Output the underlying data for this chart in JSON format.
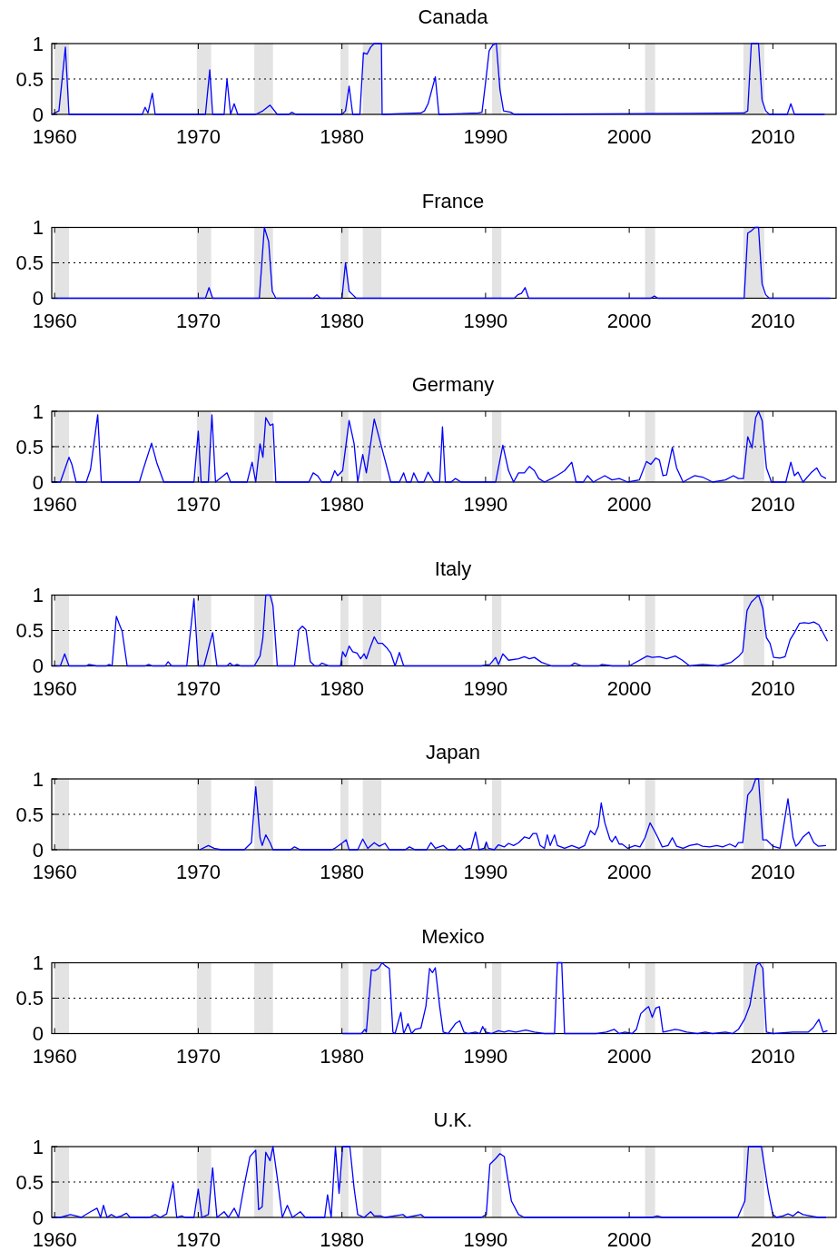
{
  "chart_data": [
    {
      "type": "line",
      "title": "Canada",
      "xlim": [
        1959.8,
        2014.4
      ],
      "xticks": [
        1960,
        1970,
        1980,
        1990,
        2000,
        2010
      ],
      "ylim": [
        0,
        1
      ],
      "yticks": [
        0,
        0.5,
        1
      ],
      "bands": [
        {
          "axis": "x",
          "from": 1960.0,
          "to": 1961.0,
          "color": "#e3e3e3"
        },
        {
          "axis": "x",
          "from": 1969.9,
          "to": 1970.9,
          "color": "#e3e3e3"
        },
        {
          "axis": "x",
          "from": 1973.9,
          "to": 1975.2,
          "color": "#e3e3e3"
        },
        {
          "axis": "x",
          "from": 1979.9,
          "to": 1980.45,
          "color": "#e3e3e3"
        },
        {
          "axis": "x",
          "from": 1981.45,
          "to": 1982.75,
          "color": "#e3e3e3"
        },
        {
          "axis": "x",
          "from": 1990.45,
          "to": 1991.1,
          "color": "#e3e3e3"
        },
        {
          "axis": "x",
          "from": 2001.1,
          "to": 2001.8,
          "color": "#e3e3e3"
        },
        {
          "axis": "x",
          "from": 2007.95,
          "to": 2009.4,
          "color": "#e3e3e3"
        }
      ],
      "ref_lines": [
        {
          "axis": "y",
          "value": 0.5,
          "color": "#000000",
          "line_style": "dotted"
        }
      ],
      "series": [
        {
          "color": "#0000ff",
          "x": [
            1959.8,
            1960.3,
            1960.75,
            1961.0,
            1966.1,
            1966.3,
            1966.5,
            1966.8,
            1967.0,
            1970.5,
            1970.8,
            1971.0,
            1971.8,
            1972.0,
            1972.25,
            1972.5,
            1972.75,
            1974.0,
            1974.5,
            1975.0,
            1975.5,
            1976.3,
            1976.5,
            1976.8,
            1980.0,
            1980.25,
            1980.5,
            1980.75,
            1981.25,
            1981.5,
            1981.75,
            1982.0,
            1982.25,
            1982.5,
            1982.75,
            1982.8,
            1985.5,
            1985.75,
            1986.0,
            1986.5,
            1986.75,
            1989.5,
            1989.75,
            1990.0,
            1990.25,
            1990.5,
            1990.75,
            1991.0,
            1991.25,
            1991.75,
            1992.0,
            2008.0,
            2008.25,
            2008.5,
            2008.75,
            2009.0,
            2009.25,
            2009.5,
            2009.75,
            2011.0,
            2011.25,
            2011.5,
            2013.6
          ],
          "values": [
            0,
            0.05,
            0.95,
            0,
            0,
            0.1,
            0.02,
            0.3,
            0,
            0,
            0.63,
            0,
            0,
            0.5,
            0,
            0.15,
            0,
            0,
            0.05,
            0.13,
            0,
            0,
            0.03,
            0,
            0,
            0.05,
            0.4,
            0,
            0,
            0.87,
            0.85,
            0.95,
            1,
            1,
            1,
            0,
            0.02,
            0.05,
            0.15,
            0.53,
            0,
            0.02,
            0.03,
            0.45,
            0.9,
            0.98,
            1,
            0.35,
            0.05,
            0.03,
            0,
            0.02,
            0.05,
            1,
            1,
            1,
            0.2,
            0.05,
            0,
            0,
            0.15,
            0,
            0
          ]
        }
      ]
    },
    {
      "type": "line",
      "title": "France",
      "xlim": [
        1959.8,
        2014.4
      ],
      "xticks": [
        1960,
        1970,
        1980,
        1990,
        2000,
        2010
      ],
      "ylim": [
        0,
        1
      ],
      "yticks": [
        0,
        0.5,
        1
      ],
      "bands": [
        {
          "axis": "x",
          "from": 1960.0,
          "to": 1961.0,
          "color": "#e3e3e3"
        },
        {
          "axis": "x",
          "from": 1969.9,
          "to": 1970.9,
          "color": "#e3e3e3"
        },
        {
          "axis": "x",
          "from": 1973.9,
          "to": 1975.2,
          "color": "#e3e3e3"
        },
        {
          "axis": "x",
          "from": 1979.9,
          "to": 1980.45,
          "color": "#e3e3e3"
        },
        {
          "axis": "x",
          "from": 1981.45,
          "to": 1982.75,
          "color": "#e3e3e3"
        },
        {
          "axis": "x",
          "from": 1990.45,
          "to": 1991.1,
          "color": "#e3e3e3"
        },
        {
          "axis": "x",
          "from": 2001.1,
          "to": 2001.8,
          "color": "#e3e3e3"
        },
        {
          "axis": "x",
          "from": 2007.95,
          "to": 2009.4,
          "color": "#e3e3e3"
        }
      ],
      "ref_lines": [
        {
          "axis": "y",
          "value": 0.5,
          "color": "#000000",
          "line_style": "dotted"
        }
      ],
      "series": [
        {
          "color": "#0000ff",
          "x": [
            1959.8,
            1970.5,
            1970.75,
            1971.0,
            1974.25,
            1974.6,
            1974.9,
            1975.15,
            1975.4,
            1978.0,
            1978.25,
            1978.5,
            1980.0,
            1980.25,
            1980.5,
            1980.75,
            1981.0,
            1992.0,
            1992.25,
            1992.5,
            1992.75,
            1993.0,
            2001.5,
            2001.75,
            2002.0,
            2008.0,
            2008.25,
            2008.5,
            2008.75,
            2009.0,
            2009.25,
            2009.5,
            2009.75,
            2014.0
          ],
          "values": [
            0,
            0,
            0.15,
            0,
            0,
            1,
            0.8,
            0.1,
            0,
            0,
            0.05,
            0,
            0,
            0.5,
            0.1,
            0.05,
            0,
            0,
            0.05,
            0.07,
            0.15,
            0,
            0,
            0.03,
            0,
            0,
            0.92,
            0.95,
            1,
            1,
            0.2,
            0.05,
            0,
            0
          ]
        }
      ]
    },
    {
      "type": "line",
      "title": "Germany",
      "xlim": [
        1959.8,
        2014.4
      ],
      "xticks": [
        1960,
        1970,
        1980,
        1990,
        2000,
        2010
      ],
      "ylim": [
        0,
        1
      ],
      "yticks": [
        0,
        0.5,
        1
      ],
      "bands": [
        {
          "axis": "x",
          "from": 1960.0,
          "to": 1961.0,
          "color": "#e3e3e3"
        },
        {
          "axis": "x",
          "from": 1969.9,
          "to": 1970.9,
          "color": "#e3e3e3"
        },
        {
          "axis": "x",
          "from": 1973.9,
          "to": 1975.2,
          "color": "#e3e3e3"
        },
        {
          "axis": "x",
          "from": 1979.9,
          "to": 1980.45,
          "color": "#e3e3e3"
        },
        {
          "axis": "x",
          "from": 1981.45,
          "to": 1982.75,
          "color": "#e3e3e3"
        },
        {
          "axis": "x",
          "from": 1990.45,
          "to": 1991.1,
          "color": "#e3e3e3"
        },
        {
          "axis": "x",
          "from": 2001.1,
          "to": 2001.8,
          "color": "#e3e3e3"
        },
        {
          "axis": "x",
          "from": 2007.95,
          "to": 2009.4,
          "color": "#e3e3e3"
        }
      ],
      "ref_lines": [
        {
          "axis": "y",
          "value": 0.5,
          "color": "#000000",
          "line_style": "dotted"
        }
      ],
      "series": [
        {
          "color": "#0000ff",
          "x": [
            1959.8,
            1960.4,
            1961.0,
            1961.2,
            1961.5,
            1962.2,
            1962.5,
            1963.0,
            1963.25,
            1965.9,
            1966.2,
            1966.75,
            1967.1,
            1967.6,
            1969.7,
            1970.0,
            1970.2,
            1970.7,
            1970.95,
            1971.2,
            1972.0,
            1972.25,
            1973.4,
            1973.75,
            1974.0,
            1974.3,
            1974.5,
            1974.7,
            1975.0,
            1975.2,
            1975.4,
            1977.7,
            1978.0,
            1978.3,
            1978.6,
            1979.2,
            1979.5,
            1979.7,
            1980.05,
            1980.5,
            1980.85,
            1981.1,
            1981.45,
            1981.7,
            1982.25,
            1982.7,
            1983.0,
            1983.4,
            1984.0,
            1984.3,
            1984.5,
            1984.8,
            1985.0,
            1985.3,
            1985.7,
            1986.0,
            1986.4,
            1986.8,
            1987.0,
            1987.2,
            1987.6,
            1987.9,
            1988.3,
            1990.7,
            1991.2,
            1991.6,
            1991.95,
            1992.3,
            1992.7,
            1993.05,
            1993.4,
            1993.7,
            1994.1,
            1994.6,
            1994.95,
            1995.5,
            1996.0,
            1996.3,
            1996.8,
            1997.1,
            1997.5,
            1998.3,
            1998.8,
            1999.3,
            1999.9,
            2000.7,
            2001.2,
            2001.5,
            2001.85,
            2002.1,
            2002.35,
            2002.6,
            2003.0,
            2003.3,
            2003.75,
            2004.55,
            2005.1,
            2005.8,
            2006.7,
            2007.25,
            2007.6,
            2007.95,
            2008.25,
            2008.55,
            2008.8,
            2009.0,
            2009.25,
            2009.55,
            2009.9,
            2010.9,
            2011.25,
            2011.5,
            2011.75,
            2012.1,
            2012.65,
            2013.05,
            2013.35,
            2013.7
          ],
          "values": [
            0,
            0,
            0.35,
            0.25,
            0,
            0,
            0.18,
            0.95,
            0,
            0,
            0.2,
            0.55,
            0.28,
            0,
            0,
            0.72,
            0,
            0,
            0.95,
            0,
            0.13,
            0,
            0,
            0.28,
            0,
            0.54,
            0.35,
            0.91,
            0.8,
            0.82,
            0,
            0,
            0.13,
            0.09,
            0,
            0,
            0.16,
            0.09,
            0.16,
            0.87,
            0.54,
            0,
            0.39,
            0.13,
            0.89,
            0.54,
            0.31,
            0,
            0,
            0.13,
            0,
            0,
            0.13,
            0,
            0,
            0.14,
            0,
            0,
            0.78,
            0,
            0,
            0.05,
            0,
            0,
            0.52,
            0.16,
            0,
            0.13,
            0.13,
            0.22,
            0.16,
            0.05,
            0,
            0.05,
            0.09,
            0.16,
            0.28,
            0,
            0,
            0.09,
            0,
            0.09,
            0.03,
            0.05,
            0,
            0.03,
            0.29,
            0.25,
            0.34,
            0.31,
            0.09,
            0.1,
            0.49,
            0.2,
            0,
            0.09,
            0.07,
            0,
            0.03,
            0.09,
            0.05,
            0.05,
            0.64,
            0.48,
            0.91,
            1,
            0.87,
            0.2,
            0,
            0,
            0.28,
            0.09,
            0.14,
            0,
            0.13,
            0.2,
            0.09,
            0.05
          ]
        }
      ]
    },
    {
      "type": "line",
      "title": "Italy",
      "xlim": [
        1959.8,
        2014.4
      ],
      "xticks": [
        1960,
        1970,
        1980,
        1990,
        2000,
        2010
      ],
      "ylim": [
        0,
        1
      ],
      "yticks": [
        0,
        0.5,
        1
      ],
      "bands": [
        {
          "axis": "x",
          "from": 1960.0,
          "to": 1961.0,
          "color": "#e3e3e3"
        },
        {
          "axis": "x",
          "from": 1969.9,
          "to": 1970.9,
          "color": "#e3e3e3"
        },
        {
          "axis": "x",
          "from": 1973.9,
          "to": 1975.2,
          "color": "#e3e3e3"
        },
        {
          "axis": "x",
          "from": 1979.9,
          "to": 1980.45,
          "color": "#e3e3e3"
        },
        {
          "axis": "x",
          "from": 1981.45,
          "to": 1982.75,
          "color": "#e3e3e3"
        },
        {
          "axis": "x",
          "from": 1990.45,
          "to": 1991.1,
          "color": "#e3e3e3"
        },
        {
          "axis": "x",
          "from": 2001.1,
          "to": 2001.8,
          "color": "#e3e3e3"
        },
        {
          "axis": "x",
          "from": 2007.95,
          "to": 2009.4,
          "color": "#e3e3e3"
        }
      ],
      "ref_lines": [
        {
          "axis": "y",
          "value": 0.5,
          "color": "#000000",
          "line_style": "dotted"
        }
      ],
      "series": [
        {
          "color": "#0000ff",
          "x": [
            1959.8,
            1960.4,
            1960.7,
            1961.0,
            1962.2,
            1962.4,
            1962.9,
            1963.6,
            1963.8,
            1964.0,
            1964.3,
            1964.5,
            1964.7,
            1965.05,
            1966.3,
            1966.55,
            1966.8,
            1967.7,
            1967.9,
            1968.15,
            1969.2,
            1969.7,
            1970.0,
            1970.4,
            1971.0,
            1971.3,
            1972.0,
            1972.2,
            1972.45,
            1972.7,
            1972.95,
            1973.9,
            1974.3,
            1974.5,
            1974.7,
            1975.0,
            1975.2,
            1975.5,
            1976.7,
            1977.0,
            1977.25,
            1977.5,
            1977.8,
            1978.1,
            1978.4,
            1978.6,
            1979.1,
            1979.9,
            1980.05,
            1980.25,
            1980.5,
            1980.75,
            1981.05,
            1981.3,
            1981.55,
            1981.7,
            1982.0,
            1982.25,
            1982.5,
            1982.8,
            1983.1,
            1983.4,
            1983.7,
            1984.0,
            1984.3,
            1989.7,
            1990.3,
            1990.7,
            1990.9,
            1991.2,
            1991.6,
            1992.3,
            1992.7,
            1993.05,
            1993.4,
            1993.9,
            1994.6,
            1995.9,
            1996.2,
            1996.7,
            1997.9,
            1998.1,
            1998.8,
            2000.0,
            2001.25,
            2001.6,
            2002.1,
            2002.6,
            2003.2,
            2003.7,
            2004.2,
            2005.1,
            2006.2,
            2007.1,
            2007.6,
            2007.9,
            2008.2,
            2008.5,
            2008.8,
            2009.0,
            2009.3,
            2009.55,
            2009.8,
            2010.05,
            2010.5,
            2010.85,
            2011.2,
            2011.5,
            2011.85,
            2012.2,
            2012.5,
            2012.85,
            2013.2,
            2013.8
          ],
          "values": [
            0,
            0,
            0.17,
            0,
            0,
            0.02,
            0,
            0,
            0.02,
            0,
            0.7,
            0.59,
            0.49,
            0,
            0,
            0.02,
            0,
            0,
            0.06,
            0,
            0,
            0.95,
            0,
            0,
            0.47,
            0,
            0,
            0.04,
            0,
            0.02,
            0,
            0,
            0.14,
            0.4,
            1,
            1,
            0.85,
            0,
            0,
            0.51,
            0.56,
            0.51,
            0.06,
            0,
            0,
            0.04,
            0,
            0,
            0.2,
            0.13,
            0.28,
            0.2,
            0.18,
            0.1,
            0.17,
            0.1,
            0.28,
            0.41,
            0.32,
            0.32,
            0.26,
            0.18,
            0,
            0.19,
            0,
            0,
            0.02,
            0.12,
            0.02,
            0.17,
            0.08,
            0.1,
            0.13,
            0.1,
            0.12,
            0.05,
            0,
            0,
            0.04,
            0,
            0,
            0.02,
            0,
            0,
            0.14,
            0.12,
            0.13,
            0.1,
            0.14,
            0.08,
            0,
            0.02,
            0,
            0.05,
            0.13,
            0.2,
            0.78,
            0.9,
            0.96,
            1,
            0.81,
            0.4,
            0.32,
            0.12,
            0.11,
            0.13,
            0.37,
            0.47,
            0.6,
            0.61,
            0.6,
            0.62,
            0.58,
            0.35
          ]
        }
      ]
    },
    {
      "type": "line",
      "title": "Japan",
      "xlim": [
        1959.8,
        2014.4
      ],
      "xticks": [
        1960,
        1970,
        1980,
        1990,
        2000,
        2010
      ],
      "ylim": [
        0,
        1
      ],
      "yticks": [
        0,
        0.5,
        1
      ],
      "bands": [
        {
          "axis": "x",
          "from": 1960.0,
          "to": 1961.0,
          "color": "#e3e3e3"
        },
        {
          "axis": "x",
          "from": 1969.9,
          "to": 1970.9,
          "color": "#e3e3e3"
        },
        {
          "axis": "x",
          "from": 1973.9,
          "to": 1975.2,
          "color": "#e3e3e3"
        },
        {
          "axis": "x",
          "from": 1979.9,
          "to": 1980.45,
          "color": "#e3e3e3"
        },
        {
          "axis": "x",
          "from": 1981.45,
          "to": 1982.75,
          "color": "#e3e3e3"
        },
        {
          "axis": "x",
          "from": 1990.45,
          "to": 1991.1,
          "color": "#e3e3e3"
        },
        {
          "axis": "x",
          "from": 2001.1,
          "to": 2001.8,
          "color": "#e3e3e3"
        },
        {
          "axis": "x",
          "from": 2007.95,
          "to": 2009.4,
          "color": "#e3e3e3"
        }
      ],
      "ref_lines": [
        {
          "axis": "y",
          "value": 0.5,
          "color": "#000000",
          "line_style": "dotted"
        }
      ],
      "series": [
        {
          "color": "#0000ff",
          "x": [
            1970.1,
            1970.7,
            1971.1,
            1971.6,
            1973.2,
            1973.7,
            1974.0,
            1974.3,
            1974.45,
            1974.7,
            1975.0,
            1975.2,
            1976.4,
            1976.7,
            1977.1,
            1979.3,
            1979.5,
            1980.05,
            1980.3,
            1980.5,
            1981.1,
            1981.45,
            1981.8,
            1982.25,
            1982.6,
            1983.0,
            1983.3,
            1984.4,
            1984.7,
            1985.1,
            1985.9,
            1986.2,
            1986.5,
            1987.05,
            1987.4,
            1987.9,
            1988.2,
            1988.5,
            1989.0,
            1989.3,
            1989.55,
            1989.9,
            1990.05,
            1990.2,
            1990.6,
            1990.9,
            1991.3,
            1991.6,
            1991.95,
            1992.3,
            1992.7,
            1993.05,
            1993.3,
            1993.55,
            1993.8,
            1994.1,
            1994.3,
            1994.5,
            1994.8,
            1995.0,
            1995.5,
            1996.0,
            1996.5,
            1996.9,
            1997.3,
            1997.6,
            1997.85,
            1998.05,
            1998.3,
            1998.65,
            1998.8,
            1999.05,
            1999.3,
            1999.5,
            1999.9,
            2000.4,
            2000.75,
            2001.1,
            2001.45,
            2001.75,
            2002.0,
            2002.3,
            2002.7,
            2003.0,
            2003.3,
            2003.75,
            2004.2,
            2004.75,
            2005.1,
            2005.6,
            2006.1,
            2006.5,
            2007.0,
            2007.4,
            2007.6,
            2007.9,
            2008.25,
            2008.55,
            2008.8,
            2009.0,
            2009.3,
            2009.55,
            2010.0,
            2010.5,
            2011.05,
            2011.4,
            2011.6,
            2011.8,
            2012.1,
            2012.5,
            2012.85,
            2013.15,
            2013.7
          ],
          "values": [
            0,
            0.06,
            0.02,
            0,
            0,
            0.1,
            0.89,
            0.17,
            0.06,
            0.21,
            0.1,
            0,
            0,
            0.04,
            0,
            0,
            0.02,
            0.1,
            0.14,
            0,
            0,
            0.15,
            0.02,
            0.1,
            0.05,
            0.09,
            0,
            0,
            0.04,
            0,
            0,
            0.1,
            0.02,
            0.06,
            0,
            0,
            0.06,
            0,
            0.02,
            0.25,
            0,
            0.02,
            0.11,
            0.02,
            0,
            0.07,
            0.04,
            0.09,
            0.06,
            0.1,
            0.18,
            0.16,
            0.23,
            0.23,
            0.06,
            0.02,
            0.21,
            0.06,
            0.21,
            0.06,
            0.02,
            0.06,
            0.02,
            0.06,
            0.27,
            0.21,
            0.33,
            0.66,
            0.38,
            0.15,
            0.11,
            0.19,
            0.08,
            0.08,
            0.02,
            0.06,
            0.04,
            0.17,
            0.38,
            0.27,
            0.17,
            0.04,
            0.06,
            0.17,
            0.05,
            0.02,
            0.06,
            0.08,
            0.05,
            0.04,
            0.06,
            0.04,
            0.08,
            0.04,
            0.1,
            0.1,
            0.77,
            0.85,
            1,
            1,
            0.14,
            0.14,
            0.05,
            0.02,
            0.72,
            0.17,
            0.05,
            0.09,
            0.18,
            0.25,
            0.1,
            0.05,
            0.06
          ]
        }
      ]
    },
    {
      "type": "line",
      "title": "Mexico",
      "xlim": [
        1959.8,
        2014.4
      ],
      "xticks": [
        1960,
        1970,
        1980,
        1990,
        2000,
        2010
      ],
      "ylim": [
        0,
        1
      ],
      "yticks": [
        0,
        0.5,
        1
      ],
      "bands": [
        {
          "axis": "x",
          "from": 1960.0,
          "to": 1961.0,
          "color": "#e3e3e3"
        },
        {
          "axis": "x",
          "from": 1969.9,
          "to": 1970.9,
          "color": "#e3e3e3"
        },
        {
          "axis": "x",
          "from": 1973.9,
          "to": 1975.2,
          "color": "#e3e3e3"
        },
        {
          "axis": "x",
          "from": 1979.9,
          "to": 1980.45,
          "color": "#e3e3e3"
        },
        {
          "axis": "x",
          "from": 1981.45,
          "to": 1982.75,
          "color": "#e3e3e3"
        },
        {
          "axis": "x",
          "from": 1990.45,
          "to": 1991.1,
          "color": "#e3e3e3"
        },
        {
          "axis": "x",
          "from": 2001.1,
          "to": 2001.8,
          "color": "#e3e3e3"
        },
        {
          "axis": "x",
          "from": 2007.95,
          "to": 2009.4,
          "color": "#e3e3e3"
        }
      ],
      "ref_lines": [
        {
          "axis": "y",
          "value": 0.5,
          "color": "#000000",
          "line_style": "dotted"
        }
      ],
      "series": [
        {
          "color": "#0000ff",
          "x": [
            1980.05,
            1981.35,
            1981.6,
            1981.7,
            1982.05,
            1982.3,
            1982.55,
            1982.8,
            1983.0,
            1983.3,
            1983.55,
            1983.7,
            1984.1,
            1984.3,
            1984.6,
            1984.85,
            1985.1,
            1985.5,
            1985.85,
            1986.1,
            1986.3,
            1986.5,
            1986.8,
            1987.05,
            1987.4,
            1987.9,
            1988.2,
            1988.5,
            1988.8,
            1989.3,
            1989.6,
            1989.8,
            1990.0,
            1990.4,
            1990.9,
            1991.3,
            1991.6,
            1992.1,
            1992.8,
            1993.4,
            1994.1,
            1994.8,
            1995.0,
            1995.3,
            1995.5,
            1997.7,
            1998.4,
            1998.95,
            1999.3,
            1999.7,
            2000.2,
            2000.5,
            2000.8,
            2001.2,
            2001.35,
            2001.6,
            2001.85,
            2002.1,
            2002.35,
            2002.8,
            2003.2,
            2003.5,
            2004.0,
            2004.75,
            2005.3,
            2005.8,
            2006.7,
            2007.2,
            2007.6,
            2008.05,
            2008.4,
            2008.65,
            2008.85,
            2009.05,
            2009.3,
            2009.55,
            2010.0,
            2011.4,
            2012.45,
            2012.8,
            2013.2,
            2013.5,
            2013.8
          ],
          "values": [
            0,
            0,
            0.06,
            0.02,
            0.9,
            0.89,
            0.92,
            1,
            0.96,
            0.92,
            0.02,
            0,
            0.3,
            0,
            0.14,
            0,
            0.06,
            0.08,
            0.39,
            0.92,
            0.86,
            0.93,
            0.39,
            0.02,
            0,
            0.14,
            0.18,
            0.02,
            0,
            0.02,
            0,
            0.1,
            0.02,
            0,
            0.04,
            0.02,
            0.04,
            0.02,
            0.05,
            0.02,
            0,
            0,
            1,
            1,
            0,
            0,
            0.02,
            0.06,
            0,
            0.02,
            0,
            0.06,
            0.28,
            0.36,
            0.38,
            0.23,
            0.36,
            0.38,
            0.02,
            0.04,
            0.06,
            0.05,
            0.02,
            0,
            0.02,
            0,
            0.02,
            0,
            0.06,
            0.21,
            0.4,
            0.7,
            0.96,
            1,
            0.92,
            0.02,
            0,
            0.02,
            0.02,
            0.08,
            0.2,
            0.02,
            0.04
          ]
        }
      ]
    },
    {
      "type": "line",
      "title": "U.K.",
      "xlim": [
        1959.8,
        2014.4
      ],
      "xticks": [
        1960,
        1970,
        1980,
        1990,
        2000,
        2010
      ],
      "ylim": [
        0,
        1
      ],
      "yticks": [
        0,
        0.5,
        1
      ],
      "bands": [
        {
          "axis": "x",
          "from": 1960.0,
          "to": 1961.0,
          "color": "#e3e3e3"
        },
        {
          "axis": "x",
          "from": 1969.9,
          "to": 1970.9,
          "color": "#e3e3e3"
        },
        {
          "axis": "x",
          "from": 1973.9,
          "to": 1975.2,
          "color": "#e3e3e3"
        },
        {
          "axis": "x",
          "from": 1979.9,
          "to": 1980.45,
          "color": "#e3e3e3"
        },
        {
          "axis": "x",
          "from": 1981.45,
          "to": 1982.75,
          "color": "#e3e3e3"
        },
        {
          "axis": "x",
          "from": 1990.45,
          "to": 1991.1,
          "color": "#e3e3e3"
        },
        {
          "axis": "x",
          "from": 2001.1,
          "to": 2001.8,
          "color": "#e3e3e3"
        },
        {
          "axis": "x",
          "from": 2007.95,
          "to": 2009.4,
          "color": "#e3e3e3"
        }
      ],
      "ref_lines": [
        {
          "axis": "y",
          "value": 0.5,
          "color": "#000000",
          "line_style": "dotted"
        }
      ],
      "series": [
        {
          "color": "#0000ff",
          "x": [
            1959.8,
            1960.4,
            1961.1,
            1961.5,
            1961.85,
            1962.5,
            1962.95,
            1963.2,
            1963.4,
            1963.65,
            1963.95,
            1964.3,
            1964.65,
            1965.0,
            1965.25,
            1966.6,
            1967.0,
            1967.35,
            1967.8,
            1968.25,
            1968.5,
            1968.85,
            1969.1,
            1969.7,
            1970.0,
            1970.25,
            1970.7,
            1971.0,
            1971.3,
            1971.8,
            1972.1,
            1972.5,
            1972.8,
            1973.2,
            1973.6,
            1974.0,
            1974.2,
            1974.45,
            1974.7,
            1975.0,
            1975.2,
            1975.5,
            1975.85,
            1976.2,
            1976.55,
            1977.1,
            1977.45,
            1978.8,
            1979.0,
            1979.25,
            1979.55,
            1979.8,
            1980.05,
            1980.3,
            1980.55,
            1980.85,
            1981.1,
            1981.55,
            1982.0,
            1982.25,
            1982.7,
            1983.0,
            1984.25,
            1984.5,
            1985.5,
            1985.75,
            1989.7,
            1990.05,
            1990.3,
            1990.7,
            1991.0,
            1991.3,
            1991.5,
            1991.8,
            1992.3,
            1992.7,
            2001.6,
            2001.95,
            2002.3,
            2007.55,
            2008.05,
            2008.3,
            2009.2,
            2009.7,
            2010.0,
            2010.25,
            2010.7,
            2011.05,
            2011.4,
            2011.75,
            2012.1,
            2012.6,
            2013.15,
            2013.7
          ],
          "values": [
            0,
            0,
            0.04,
            0.02,
            0,
            0.08,
            0.13,
            0,
            0.17,
            0,
            0.04,
            0,
            0.02,
            0.06,
            0,
            0,
            0.04,
            0,
            0.05,
            0.49,
            0,
            0.02,
            0,
            0,
            0.4,
            0,
            0.04,
            0.7,
            0,
            0.08,
            0,
            0.13,
            0,
            0.45,
            0.86,
            0.95,
            0.11,
            0.15,
            0.92,
            0.8,
            1,
            0.56,
            0,
            0.17,
            0,
            0.08,
            0,
            0,
            0.32,
            0,
            1,
            0.34,
            1,
            1,
            1,
            0.41,
            0.04,
            0,
            0.08,
            0.02,
            0.02,
            0,
            0.04,
            0,
            0.04,
            0,
            0,
            0.04,
            0.75,
            0.83,
            0.9,
            0.86,
            0.6,
            0.23,
            0.04,
            0,
            0,
            0.02,
            0,
            0,
            0.23,
            1,
            1,
            0.34,
            0.04,
            0,
            0.02,
            0.05,
            0.02,
            0.08,
            0.04,
            0.02,
            0,
            0
          ]
        }
      ]
    }
  ]
}
